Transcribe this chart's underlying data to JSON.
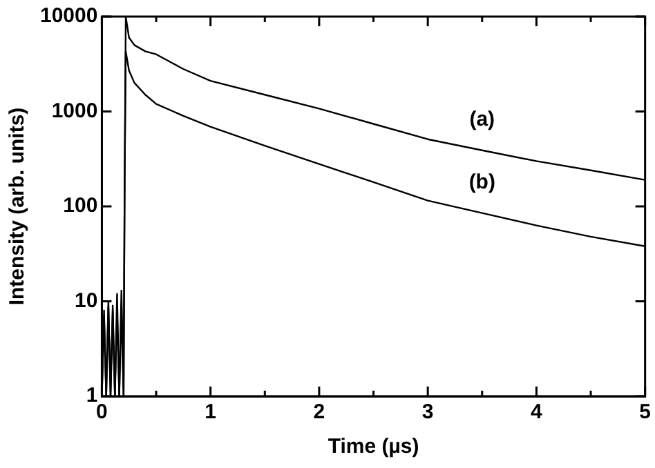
{
  "chart_data": {
    "type": "line",
    "xlabel": "Time (µs)",
    "ylabel": "Intensity (arb. units)",
    "log": "y",
    "grid": false,
    "legend": false,
    "marker": "none",
    "line_style": "solid",
    "xlim": [
      0,
      5
    ],
    "ylim": [
      1,
      10000
    ],
    "xticks": [
      0,
      {
        "value": 0.5,
        "label": null
      },
      1,
      {
        "value": 1.5,
        "label": null
      },
      2,
      {
        "value": 2.5,
        "label": null
      },
      3,
      {
        "value": 3.5,
        "label": null
      },
      4,
      {
        "value": 4.5,
        "label": null
      },
      5
    ],
    "yticks": [
      1,
      10,
      100,
      1000,
      10000
    ],
    "series": [
      {
        "name": "(a)",
        "color": "#000000",
        "x": [
          0,
          0.02,
          0.04,
          0.06,
          0.08,
          0.1,
          0.12,
          0.14,
          0.16,
          0.18,
          0.2,
          0.21,
          0.22,
          0.25,
          0.3,
          0.4,
          0.5,
          0.75,
          1,
          1.5,
          2,
          2.5,
          3,
          3.5,
          4,
          4.5,
          5
        ],
        "values": [
          1,
          8,
          1,
          9,
          1,
          8,
          1,
          12,
          1,
          9,
          1,
          200,
          10000,
          6000,
          5000,
          4300,
          4000,
          2800,
          2100,
          1500,
          1070,
          740,
          510,
          390,
          300,
          240,
          190
        ]
      },
      {
        "name": "(b)",
        "color": "#000000",
        "x": [
          0,
          0.02,
          0.04,
          0.06,
          0.08,
          0.1,
          0.12,
          0.14,
          0.16,
          0.18,
          0.2,
          0.21,
          0.22,
          0.25,
          0.3,
          0.4,
          0.5,
          0.75,
          1,
          1.5,
          2,
          2.5,
          3,
          3.5,
          4,
          4.5,
          5
        ],
        "values": [
          1,
          7,
          1,
          10,
          1,
          9,
          1,
          8,
          1,
          13,
          1,
          200,
          4300,
          2700,
          2000,
          1500,
          1200,
          900,
          690,
          435,
          280,
          180,
          115,
          85,
          63,
          48,
          38
        ]
      }
    ]
  }
}
